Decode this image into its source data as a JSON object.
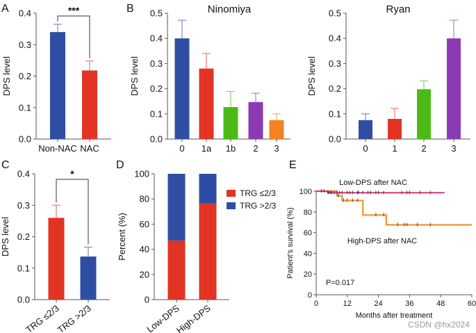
{
  "watermark": "CSDN @hx2024",
  "colors": {
    "blue": "#2e4ea3",
    "red": "#e23424",
    "green": "#4cba16",
    "purple": "#8a3bb4",
    "orange": "#f58220",
    "pink": "#d8397e",
    "km_orange": "#f39a3e",
    "axis": "#555555"
  },
  "chart_data": [
    {
      "panel": "A",
      "type": "bar",
      "title": "",
      "ylabel": "DPS level",
      "xlabel": "",
      "ylim": [
        0,
        0.4
      ],
      "yticks": [
        "0.0",
        "0.1",
        "0.2",
        "0.3",
        "0.4"
      ],
      "categories": [
        "Non-NAC",
        "NAC"
      ],
      "values": [
        0.34,
        0.218
      ],
      "errors": [
        0.025,
        0.03
      ],
      "bar_colors": [
        "blue",
        "red"
      ],
      "significance": {
        "label": "***",
        "between": [
          0,
          1
        ]
      }
    },
    {
      "panel": "B",
      "type": "bar",
      "title": "Ninomiya",
      "ylabel": "DPS level",
      "xlabel": "",
      "ylim": [
        0,
        0.5
      ],
      "yticks": [
        "0.0",
        "0.1",
        "0.2",
        "0.3",
        "0.4",
        "0.5"
      ],
      "categories": [
        "0",
        "1a",
        "1b",
        "2",
        "3"
      ],
      "values": [
        0.4,
        0.28,
        0.127,
        0.147,
        0.075
      ],
      "errors": [
        0.072,
        0.06,
        0.062,
        0.035,
        0.025
      ],
      "bar_colors": [
        "blue",
        "red",
        "green",
        "purple",
        "orange"
      ]
    },
    {
      "panel": "B2",
      "type": "bar",
      "title": "Ryan",
      "ylabel": "DPS level",
      "xlabel": "",
      "ylim": [
        0,
        0.5
      ],
      "yticks": [
        "0.0",
        "0.1",
        "0.2",
        "0.3",
        "0.4",
        "0.5"
      ],
      "categories": [
        "0",
        "1",
        "2",
        "3"
      ],
      "values": [
        0.075,
        0.08,
        0.198,
        0.4
      ],
      "errors": [
        0.025,
        0.042,
        0.033,
        0.072
      ],
      "bar_colors": [
        "blue",
        "red",
        "green",
        "purple"
      ]
    },
    {
      "panel": "C",
      "type": "bar",
      "title": "",
      "ylabel": "DPS level",
      "xlabel": "",
      "ylim": [
        0,
        0.4
      ],
      "yticks": [
        "0.0",
        "0.1",
        "0.2",
        "0.3",
        "0.4"
      ],
      "categories": [
        "TRG ≤2/3",
        "TRG >2/3"
      ],
      "values": [
        0.26,
        0.137
      ],
      "errors": [
        0.04,
        0.03
      ],
      "bar_colors": [
        "red",
        "blue"
      ],
      "significance": {
        "label": "*",
        "between": [
          0,
          1
        ]
      }
    },
    {
      "panel": "D",
      "type": "bar",
      "stacked": true,
      "title": "",
      "ylabel": "Percent (%)",
      "xlabel": "",
      "ylim": [
        0,
        100
      ],
      "yticks": [
        "0",
        "20",
        "40",
        "60",
        "80",
        "100"
      ],
      "categories": [
        "Low-DPS",
        "High-DPS"
      ],
      "series": [
        {
          "name": "TRG ≤2/3",
          "color": "red",
          "values": [
            47,
            76.5
          ]
        },
        {
          "name": "TRG >2/3",
          "color": "blue",
          "values": [
            53,
            23.5
          ]
        }
      ],
      "legend": "right"
    },
    {
      "panel": "E",
      "type": "line",
      "title": "",
      "ylabel": "Patient's survival (%)",
      "xlabel": "Months after treatment",
      "xlim": [
        0,
        60
      ],
      "ylim": [
        0,
        100
      ],
      "xticks": [
        "0",
        "12",
        "24",
        "36",
        "48",
        "60"
      ],
      "yticks": [
        "0",
        "20",
        "40",
        "60",
        "80",
        "100"
      ],
      "annotation": "P=0.017",
      "series": [
        {
          "name": "Low-DPS after NAC",
          "color": "pink",
          "steps": [
            [
              0,
              100
            ],
            [
              4.5,
              98.5
            ],
            [
              49.5,
              98.5
            ]
          ],
          "censors": [
            2,
            3,
            4.5,
            5,
            5.5,
            6,
            7,
            8,
            9,
            10,
            12,
            13,
            14,
            16,
            16.3,
            18,
            20,
            21,
            23,
            24,
            26,
            33,
            35,
            36,
            40,
            44
          ]
        },
        {
          "name": "High-DPS after NAC",
          "color": "km_orange",
          "steps": [
            [
              0,
              100
            ],
            [
              8,
              95.5
            ],
            [
              10,
              91
            ],
            [
              18,
              77
            ],
            [
              27,
              67.5
            ],
            [
              60,
              67.5
            ]
          ],
          "censors": [
            8.5,
            10.5,
            12,
            14,
            16,
            23,
            26,
            31.5,
            34,
            35,
            39,
            44
          ]
        }
      ]
    }
  ],
  "panel_labels": [
    "A",
    "B",
    "C",
    "D",
    "E"
  ]
}
